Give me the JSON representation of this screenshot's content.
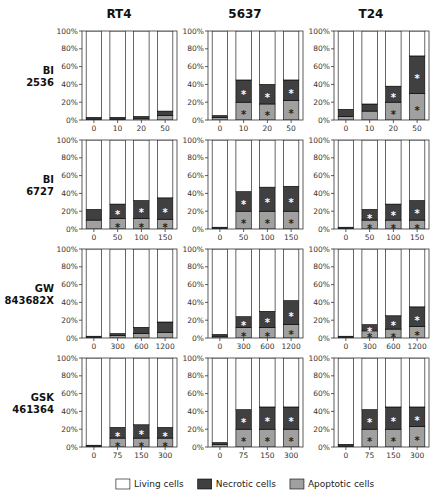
{
  "chart_data": [
    {
      "type": "bar",
      "stacked": true,
      "grid": false,
      "title": "RT4",
      "ylabel": "BI\n2536",
      "legend": "bottom",
      "categories": [
        "0",
        "10",
        "20",
        "50"
      ],
      "ylim": [
        0,
        100
      ],
      "yticks": [
        {
          "value": 0,
          "label": "0%"
        },
        {
          "value": 20,
          "label": "20%"
        },
        {
          "value": 40,
          "label": "40%"
        },
        {
          "value": 60,
          "label": "60%"
        },
        {
          "value": 80,
          "label": "80%"
        },
        {
          "value": 100,
          "label": "100%"
        }
      ],
      "series": [
        {
          "name": "Living cells",
          "color": "#ffffff",
          "values": [
            97,
            97,
            96,
            90
          ]
        },
        {
          "name": "Necrotic cells",
          "color": "#404040",
          "values": [
            2,
            2,
            2,
            5
          ]
        },
        {
          "name": "Apoptotic cells",
          "color": "#a0a0a0",
          "values": [
            1,
            1,
            2,
            5
          ]
        }
      ]
    },
    {
      "type": "bar",
      "stacked": true,
      "grid": false,
      "title": "5637",
      "categories": [
        "0",
        "10",
        "20",
        "50"
      ],
      "ylim": [
        0,
        100
      ],
      "yticks": [
        {
          "value": 0,
          "label": "0%"
        },
        {
          "value": 20,
          "label": "20%"
        },
        {
          "value": 40,
          "label": "40%"
        },
        {
          "value": 60,
          "label": "60%"
        },
        {
          "value": 80,
          "label": "80%"
        },
        {
          "value": 100,
          "label": "100%"
        }
      ],
      "series": [
        {
          "color": "#ffffff",
          "values": [
            95,
            55,
            60,
            55
          ]
        },
        {
          "color": "#404040",
          "values": [
            2,
            25,
            22,
            23
          ]
        },
        {
          "color": "#a0a0a0",
          "values": [
            3,
            20,
            18,
            22
          ]
        }
      ],
      "annotations": [
        {
          "text": "*",
          "significant": [
            false,
            true,
            true,
            true
          ]
        }
      ]
    },
    {
      "type": "bar",
      "stacked": true,
      "grid": false,
      "title": "T24",
      "categories": [
        "0",
        "10",
        "20",
        "50"
      ],
      "ylim": [
        0,
        100
      ],
      "yticks": [
        {
          "value": 0,
          "label": "0%"
        },
        {
          "value": 20,
          "label": "20%"
        },
        {
          "value": 40,
          "label": "40%"
        },
        {
          "value": 60,
          "label": "60%"
        },
        {
          "value": 80,
          "label": "80%"
        },
        {
          "value": 100,
          "label": "100%"
        }
      ],
      "series": [
        {
          "color": "#ffffff",
          "values": [
            88,
            82,
            62,
            28
          ]
        },
        {
          "color": "#404040",
          "values": [
            8,
            8,
            18,
            42
          ]
        },
        {
          "color": "#a0a0a0",
          "values": [
            4,
            10,
            20,
            30
          ]
        }
      ],
      "annotations": [
        {
          "text": "*",
          "significant": [
            false,
            false,
            true,
            true
          ]
        }
      ]
    },
    {
      "type": "bar",
      "stacked": true,
      "grid": false,
      "ylabel": "BI\n6727",
      "categories": [
        "0",
        "50",
        "100",
        "150"
      ],
      "ylim": [
        0,
        100
      ],
      "yticks": [
        {
          "value": 0,
          "label": "0%"
        },
        {
          "value": 20,
          "label": "20%"
        },
        {
          "value": 40,
          "label": "40%"
        },
        {
          "value": 60,
          "label": "60%"
        },
        {
          "value": 80,
          "label": "80%"
        },
        {
          "value": 100,
          "label": "100%"
        }
      ],
      "series": [
        {
          "color": "#ffffff",
          "values": [
            78,
            72,
            68,
            65
          ]
        },
        {
          "color": "#404040",
          "values": [
            12,
            16,
            20,
            24
          ]
        },
        {
          "color": "#a0a0a0",
          "values": [
            10,
            12,
            12,
            11
          ]
        }
      ],
      "annotations": [
        {
          "text": "*",
          "significant": [
            false,
            true,
            true,
            true
          ]
        }
      ]
    },
    {
      "type": "bar",
      "stacked": true,
      "grid": false,
      "categories": [
        "0",
        "50",
        "100",
        "150"
      ],
      "ylim": [
        0,
        100
      ],
      "yticks": [
        {
          "value": 0,
          "label": "0%"
        },
        {
          "value": 20,
          "label": "20%"
        },
        {
          "value": 40,
          "label": "40%"
        },
        {
          "value": 60,
          "label": "60%"
        },
        {
          "value": 80,
          "label": "80%"
        },
        {
          "value": 100,
          "label": "100%"
        }
      ],
      "series": [
        {
          "color": "#ffffff",
          "values": [
            98,
            58,
            53,
            52
          ]
        },
        {
          "color": "#404040",
          "values": [
            1,
            22,
            27,
            28
          ]
        },
        {
          "color": "#a0a0a0",
          "values": [
            1,
            20,
            20,
            20
          ]
        }
      ],
      "annotations": [
        {
          "text": "*",
          "significant": [
            false,
            true,
            true,
            true
          ]
        }
      ]
    },
    {
      "type": "bar",
      "stacked": true,
      "grid": false,
      "categories": [
        "0",
        "50",
        "100",
        "150"
      ],
      "ylim": [
        0,
        100
      ],
      "yticks": [
        {
          "value": 0,
          "label": "0%"
        },
        {
          "value": 20,
          "label": "20%"
        },
        {
          "value": 40,
          "label": "40%"
        },
        {
          "value": 60,
          "label": "60%"
        },
        {
          "value": 80,
          "label": "80%"
        },
        {
          "value": 100,
          "label": "100%"
        }
      ],
      "series": [
        {
          "color": "#ffffff",
          "values": [
            98,
            78,
            72,
            68
          ]
        },
        {
          "color": "#404040",
          "values": [
            1,
            12,
            18,
            22
          ]
        },
        {
          "color": "#a0a0a0",
          "values": [
            1,
            10,
            10,
            10
          ]
        }
      ],
      "annotations": [
        {
          "text": "*",
          "significant": [
            false,
            true,
            true,
            true
          ]
        }
      ]
    },
    {
      "type": "bar",
      "stacked": true,
      "grid": false,
      "ylabel": "GW\n843682X",
      "categories": [
        "0",
        "300",
        "600",
        "1200"
      ],
      "ylim": [
        0,
        100
      ],
      "yticks": [
        {
          "value": 0,
          "label": "0%"
        },
        {
          "value": 20,
          "label": "20%"
        },
        {
          "value": 40,
          "label": "40%"
        },
        {
          "value": 60,
          "label": "60%"
        },
        {
          "value": 80,
          "label": "80%"
        },
        {
          "value": 100,
          "label": "100%"
        }
      ],
      "series": [
        {
          "color": "#ffffff",
          "values": [
            98,
            95,
            88,
            82
          ]
        },
        {
          "color": "#404040",
          "values": [
            1,
            2,
            7,
            12
          ]
        },
        {
          "color": "#a0a0a0",
          "values": [
            1,
            3,
            5,
            6
          ]
        }
      ]
    },
    {
      "type": "bar",
      "stacked": true,
      "grid": false,
      "categories": [
        "0",
        "300",
        "600",
        "1200"
      ],
      "ylim": [
        0,
        100
      ],
      "yticks": [
        {
          "value": 0,
          "label": "0%"
        },
        {
          "value": 20,
          "label": "20%"
        },
        {
          "value": 40,
          "label": "40%"
        },
        {
          "value": 60,
          "label": "60%"
        },
        {
          "value": 80,
          "label": "80%"
        },
        {
          "value": 100,
          "label": "100%"
        }
      ],
      "series": [
        {
          "color": "#ffffff",
          "values": [
            96,
            76,
            70,
            58
          ]
        },
        {
          "color": "#404040",
          "values": [
            2,
            12,
            18,
            27
          ]
        },
        {
          "color": "#a0a0a0",
          "values": [
            2,
            12,
            12,
            15
          ]
        }
      ],
      "annotations": [
        {
          "text": "*",
          "significant": [
            false,
            true,
            true,
            true
          ]
        }
      ]
    },
    {
      "type": "bar",
      "stacked": true,
      "grid": false,
      "categories": [
        "0",
        "300",
        "600",
        "1200"
      ],
      "ylim": [
        0,
        100
      ],
      "yticks": [
        {
          "value": 0,
          "label": "0%"
        },
        {
          "value": 20,
          "label": "20%"
        },
        {
          "value": 40,
          "label": "40%"
        },
        {
          "value": 60,
          "label": "60%"
        },
        {
          "value": 80,
          "label": "80%"
        },
        {
          "value": 100,
          "label": "100%"
        }
      ],
      "series": [
        {
          "color": "#ffffff",
          "values": [
            98,
            85,
            75,
            65
          ]
        },
        {
          "color": "#404040",
          "values": [
            1,
            7,
            15,
            22
          ]
        },
        {
          "color": "#a0a0a0",
          "values": [
            1,
            8,
            10,
            13
          ]
        }
      ],
      "annotations": [
        {
          "text": "*",
          "significant": [
            false,
            true,
            true,
            true
          ]
        }
      ]
    },
    {
      "type": "bar",
      "stacked": true,
      "grid": false,
      "ylabel": "GSK\n461364",
      "categories": [
        "0",
        "75",
        "150",
        "300"
      ],
      "ylim": [
        0,
        100
      ],
      "yticks": [
        {
          "value": 0,
          "label": "0%"
        },
        {
          "value": 20,
          "label": "20%"
        },
        {
          "value": 40,
          "label": "40%"
        },
        {
          "value": 60,
          "label": "60%"
        },
        {
          "value": 80,
          "label": "80%"
        },
        {
          "value": 100,
          "label": "100%"
        }
      ],
      "series": [
        {
          "color": "#ffffff",
          "values": [
            98,
            78,
            75,
            78
          ]
        },
        {
          "color": "#404040",
          "values": [
            1,
            12,
            15,
            12
          ]
        },
        {
          "color": "#a0a0a0",
          "values": [
            1,
            10,
            10,
            10
          ]
        }
      ],
      "annotations": [
        {
          "text": "*",
          "significant": [
            false,
            true,
            true,
            true
          ]
        }
      ]
    },
    {
      "type": "bar",
      "stacked": true,
      "grid": false,
      "categories": [
        "0",
        "75",
        "150",
        "300"
      ],
      "ylim": [
        0,
        100
      ],
      "yticks": [
        {
          "value": 0,
          "label": "0%"
        },
        {
          "value": 20,
          "label": "20%"
        },
        {
          "value": 40,
          "label": "40%"
        },
        {
          "value": 60,
          "label": "60%"
        },
        {
          "value": 80,
          "label": "80%"
        },
        {
          "value": 100,
          "label": "100%"
        }
      ],
      "series": [
        {
          "color": "#ffffff",
          "values": [
            95,
            58,
            55,
            55
          ]
        },
        {
          "color": "#404040",
          "values": [
            2,
            22,
            25,
            25
          ]
        },
        {
          "color": "#a0a0a0",
          "values": [
            3,
            20,
            20,
            20
          ]
        }
      ],
      "annotations": [
        {
          "text": "*",
          "significant": [
            false,
            true,
            true,
            true
          ]
        }
      ]
    },
    {
      "type": "bar",
      "stacked": true,
      "grid": false,
      "categories": [
        "0",
        "75",
        "150",
        "300"
      ],
      "ylim": [
        0,
        100
      ],
      "yticks": [
        {
          "value": 0,
          "label": "0%"
        },
        {
          "value": 20,
          "label": "20%"
        },
        {
          "value": 40,
          "label": "40%"
        },
        {
          "value": 60,
          "label": "60%"
        },
        {
          "value": 80,
          "label": "80%"
        },
        {
          "value": 100,
          "label": "100%"
        }
      ],
      "series": [
        {
          "color": "#ffffff",
          "values": [
            97,
            58,
            55,
            55
          ]
        },
        {
          "color": "#404040",
          "values": [
            2,
            22,
            25,
            22
          ]
        },
        {
          "color": "#a0a0a0",
          "values": [
            1,
            20,
            20,
            23
          ]
        }
      ],
      "annotations": [
        {
          "text": "*",
          "significant": [
            false,
            true,
            true,
            true
          ]
        }
      ]
    }
  ]
}
